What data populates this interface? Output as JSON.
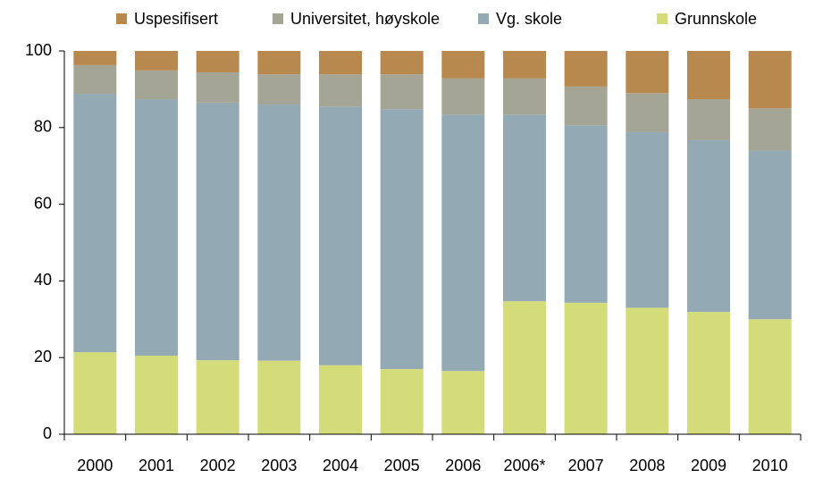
{
  "chart_data": {
    "type": "stacked_bar",
    "categories": [
      "2000",
      "2001",
      "2002",
      "2003",
      "2004",
      "2005",
      "2006",
      "2006*",
      "2007",
      "2008",
      "2009",
      "2010"
    ],
    "series": [
      {
        "name": "Uspesifisert",
        "color": "#b8894f",
        "values": [
          3.7,
          5.1,
          5.6,
          6.1,
          6.1,
          6.1,
          7.2,
          7.2,
          9.3,
          11,
          12.6,
          15
        ]
      },
      {
        "name": "Universitet, høyskole",
        "color": "#a5a595",
        "values": [
          7.5,
          7.5,
          7.9,
          7.9,
          8.4,
          9.1,
          9.4,
          9.4,
          10.1,
          10.2,
          10.7,
          11
        ]
      },
      {
        "name": "Vg. skole",
        "color": "#93a9b3",
        "values": [
          67.4,
          66.9,
          67.2,
          66.8,
          67.5,
          67.8,
          66.9,
          48.7,
          46.3,
          45.8,
          44.8,
          44
        ]
      },
      {
        "name": "Grunnskole",
        "color": "#d3dc78",
        "values": [
          21.4,
          20.5,
          19.3,
          19.2,
          18,
          17,
          16.5,
          34.7,
          34.3,
          33,
          31.9,
          30
        ]
      }
    ],
    "ylim": [
      0,
      100
    ],
    "yticks": [
      0,
      20,
      40,
      60,
      80,
      100
    ],
    "legend": "top"
  }
}
